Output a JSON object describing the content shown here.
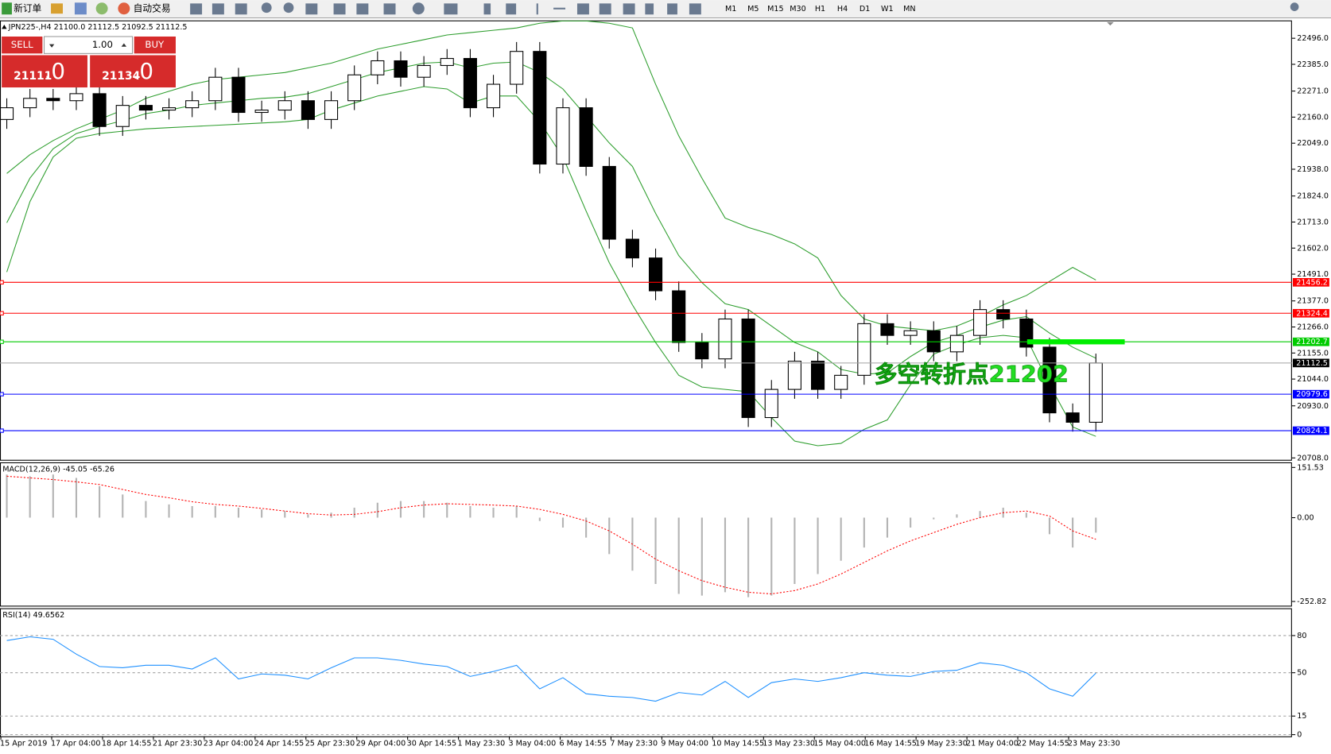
{
  "toolbar": {
    "new_order": "新订单",
    "auto_trade": "自动交易",
    "timeframes": [
      "M1",
      "M5",
      "M15",
      "M30",
      "H1",
      "H4",
      "D1",
      "W1",
      "MN"
    ]
  },
  "trade_panel": {
    "sell": "SELL",
    "buy": "BUY",
    "lots": "1.00",
    "sell_price": "21111",
    "sell_price_tail": ".0",
    "buy_price": "21134",
    "buy_price_tail": ".0"
  },
  "chart_data": [
    {
      "type": "candlestick",
      "title": "JPN225-,H4  21100.0 21112.5 21092.5 21112.5",
      "open": [
        22150,
        22200,
        22240,
        22230,
        22260,
        22120,
        22210,
        22190,
        22200,
        22230,
        22330,
        22180,
        22190,
        22230,
        22150,
        22230,
        22340,
        22400,
        22330,
        22380,
        22410,
        22200,
        22300,
        22440,
        21960,
        22200,
        21950,
        21640,
        21560,
        21420,
        21200,
        21130,
        21300,
        20880,
        21000,
        21120,
        21000,
        21060,
        21280,
        21230,
        21250,
        21160,
        21230,
        21340,
        21300,
        21180,
        20900,
        20860
      ],
      "high": [
        22240,
        22280,
        22280,
        22300,
        22300,
        22250,
        22250,
        22240,
        22270,
        22370,
        22370,
        22230,
        22270,
        22270,
        22270,
        22380,
        22440,
        22440,
        22420,
        22450,
        22450,
        22340,
        22480,
        22480,
        22240,
        22240,
        21990,
        21680,
        21600,
        21460,
        21240,
        21340,
        21340,
        21040,
        21160,
        21160,
        21100,
        21320,
        21320,
        21290,
        21290,
        21270,
        21380,
        21380,
        21340,
        21220,
        20940,
        21152.5
      ],
      "low": [
        22110,
        22160,
        22190,
        22190,
        22080,
        22080,
        22150,
        22150,
        22160,
        22190,
        22140,
        22140,
        22150,
        22110,
        22110,
        22190,
        22300,
        22290,
        22290,
        22340,
        22160,
        22160,
        22260,
        21920,
        21920,
        21910,
        21600,
        21520,
        21380,
        21160,
        21090,
        21090,
        20840,
        20840,
        20960,
        20960,
        20960,
        21020,
        21190,
        21190,
        21120,
        21120,
        21190,
        21260,
        21140,
        20860,
        20820,
        20820
      ],
      "close": [
        22200,
        22240,
        22230,
        22260,
        22120,
        22210,
        22190,
        22200,
        22230,
        22330,
        22180,
        22190,
        22230,
        22150,
        22230,
        22340,
        22400,
        22330,
        22380,
        22410,
        22200,
        22300,
        22440,
        21960,
        22200,
        21950,
        21640,
        21560,
        21420,
        21200,
        21130,
        21300,
        20880,
        21000,
        21120,
        21000,
        21060,
        21280,
        21230,
        21250,
        21160,
        21230,
        21340,
        21300,
        21180,
        20900,
        20860,
        21112.5
      ],
      "up_color": "#ffffff",
      "down_color": "#000000",
      "bands": {
        "color": "#2e9e2e",
        "upper": [
          21920,
          22000,
          22060,
          22110,
          22150,
          22190,
          22240,
          22270,
          22300,
          22320,
          22330,
          22340,
          22350,
          22370,
          22390,
          22420,
          22450,
          22470,
          22490,
          22510,
          22520,
          22530,
          22540,
          22560,
          22570,
          22570,
          22560,
          22540,
          22300,
          22080,
          21900,
          21730,
          21690,
          21660,
          21620,
          21560,
          21400,
          21300,
          21270,
          21260,
          21250,
          21270,
          21310,
          21360,
          21400,
          21460,
          21520,
          21466
        ],
        "middle": [
          21710,
          21900,
          22025,
          22090,
          22120,
          22145,
          22175,
          22190,
          22210,
          22220,
          22230,
          22240,
          22245,
          22260,
          22290,
          22320,
          22350,
          22370,
          22390,
          22395,
          22370,
          22390,
          22395,
          22350,
          22280,
          22165,
          22050,
          21950,
          21750,
          21570,
          21455,
          21365,
          21340,
          21270,
          21200,
          21160,
          21085,
          21065,
          21070,
          21140,
          21200,
          21230,
          21265,
          21295,
          21310,
          21240,
          21180,
          21133
        ],
        "lower": [
          21500,
          21800,
          21990,
          22070,
          22090,
          22100,
          22110,
          22115,
          22120,
          22125,
          22130,
          22135,
          22140,
          22150,
          22190,
          22220,
          22250,
          22270,
          22290,
          22280,
          22220,
          22250,
          22250,
          22140,
          21990,
          21760,
          21540,
          21360,
          21200,
          21060,
          21010,
          21000,
          20990,
          20880,
          20780,
          20760,
          20770,
          20830,
          20870,
          21020,
          21150,
          21190,
          21220,
          21230,
          21220,
          21020,
          20840,
          20800
        ]
      },
      "ylim": [
        20700,
        22572
      ],
      "yticks": [
        {
          "value": 22496,
          "label": "22496.0"
        },
        {
          "value": 22385,
          "label": "22385.0"
        },
        {
          "value": 22271,
          "label": "22271.0"
        },
        {
          "value": 22160,
          "label": "22160.0"
        },
        {
          "value": 22049,
          "label": "22049.0"
        },
        {
          "value": 21938,
          "label": "21938.0"
        },
        {
          "value": 21824,
          "label": "21824.0"
        },
        {
          "value": 21713,
          "label": "21713.0"
        },
        {
          "value": 21602,
          "label": "21602.0"
        },
        {
          "value": 21491,
          "label": "21491.0"
        },
        {
          "value": 21377,
          "label": "21377.0"
        },
        {
          "value": 21266,
          "label": "21266.0"
        },
        {
          "value": 21155,
          "label": "21155.0"
        },
        {
          "value": 21044,
          "label": "21044.0"
        },
        {
          "value": 20930,
          "label": "20930.0"
        },
        {
          "value": 20708,
          "label": "20708.0"
        }
      ],
      "levels": [
        {
          "value": 21456.2,
          "color": "#ff0000"
        },
        {
          "value": 21324.4,
          "color": "#ff0000"
        },
        {
          "value": 21202.7,
          "color": "#00cc00",
          "highlight": true
        },
        {
          "value": 20979.6,
          "color": "#0000ff"
        },
        {
          "value": 20824.1,
          "color": "#0000ff"
        }
      ],
      "current_price": {
        "value": 21112.5,
        "color": "#000000"
      },
      "annotation": {
        "text": "多空转折点21202",
        "color": "#22dd22"
      },
      "time_labels": [
        "15 Apr 2019",
        "17 Apr 04:00",
        "18 Apr 14:55",
        "21 Apr 23:30",
        "23 Apr 04:00",
        "24 Apr 14:55",
        "25 Apr 23:30",
        "29 Apr 04:00",
        "30 Apr 14:55",
        "1 May 23:30",
        "3 May 04:00",
        "6 May 14:55",
        "7 May 23:30",
        "9 May 04:00",
        "10 May 14:55",
        "13 May 23:30",
        "15 May 04:00",
        "16 May 14:55",
        "19 May 23:30",
        "21 May 04:00",
        "22 May 14:55",
        "23 May 23:30"
      ]
    },
    {
      "type": "macd",
      "title": "MACD(12,26,9) -45.05 -65.26",
      "histogram": [
        130,
        125,
        130,
        120,
        95,
        70,
        50,
        40,
        35,
        35,
        30,
        25,
        20,
        10,
        15,
        30,
        45,
        50,
        50,
        45,
        35,
        30,
        35,
        -10,
        -30,
        -60,
        -110,
        -160,
        -200,
        -230,
        -235,
        -225,
        -240,
        -235,
        -200,
        -170,
        -130,
        -90,
        -60,
        -30,
        -5,
        10,
        20,
        30,
        15,
        -50,
        -90,
        -45.05
      ],
      "signal": [
        125,
        120,
        115,
        108,
        100,
        85,
        70,
        60,
        48,
        40,
        35,
        28,
        20,
        12,
        8,
        10,
        18,
        30,
        38,
        42,
        40,
        38,
        35,
        25,
        10,
        -10,
        -40,
        -80,
        -125,
        -160,
        -190,
        -210,
        -225,
        -230,
        -220,
        -200,
        -170,
        -135,
        -100,
        -70,
        -45,
        -20,
        0,
        15,
        20,
        5,
        -40,
        -65.26
      ],
      "histogram_color": "#b4b4b4",
      "signal_color": "#ff0000",
      "ylim": [
        -265.6,
        164.3
      ],
      "yticks": [
        151.53,
        {
          "value": 0,
          "label": "0.00"
        },
        -252.82
      ]
    },
    {
      "type": "line",
      "title": "RSI(14) 49.6562",
      "values": [
        76,
        79,
        77,
        65,
        55,
        54,
        56,
        56,
        53,
        62,
        45,
        49,
        48,
        45,
        54,
        62,
        62,
        60,
        57,
        55,
        47,
        51,
        56,
        37,
        46,
        33,
        31,
        30,
        27,
        34,
        32,
        43,
        30,
        42,
        45,
        43,
        46,
        50,
        48,
        47,
        51,
        52,
        58,
        56,
        50,
        37,
        31,
        49.6562
      ],
      "color": "#1e90ff",
      "ylim": [
        0,
        100
      ],
      "yticks": [
        80,
        50,
        15,
        0
      ],
      "grid": true
    }
  ]
}
